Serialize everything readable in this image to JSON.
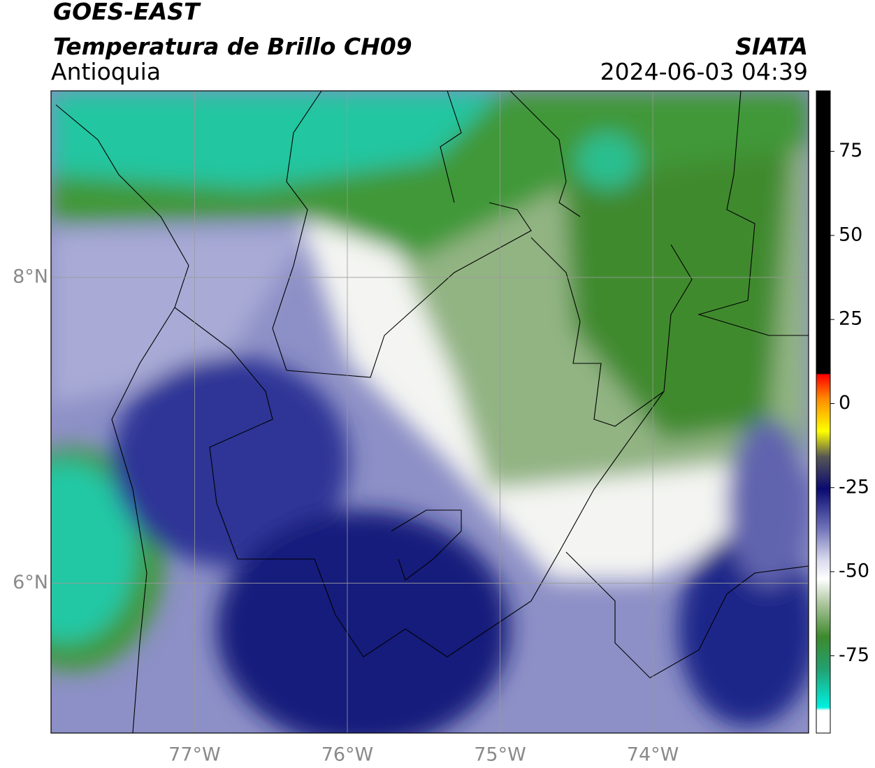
{
  "header": {
    "satellite": "GOES-EAST",
    "product": "Temperatura de Brillo CH09",
    "region": "Antioquia",
    "source": "SIATA",
    "datetime": "2024-06-03 04:39"
  },
  "chart_data": {
    "type": "map",
    "xlim": [
      -77.94,
      -72.98
    ],
    "ylim": [
      5.02,
      9.22
    ],
    "xticks": [
      {
        "value": -77,
        "label": "77°W"
      },
      {
        "value": -76,
        "label": "76°W"
      },
      {
        "value": -75,
        "label": "75°W"
      },
      {
        "value": -74,
        "label": "74°W"
      }
    ],
    "yticks": [
      {
        "value": 8,
        "label": "8°N"
      },
      {
        "value": 6,
        "label": "6°N"
      }
    ],
    "grid": true,
    "colorbar": {
      "lim": [
        -98,
        93
      ],
      "ticks": [
        75,
        50,
        25,
        0,
        -25,
        -50,
        -75
      ]
    }
  }
}
